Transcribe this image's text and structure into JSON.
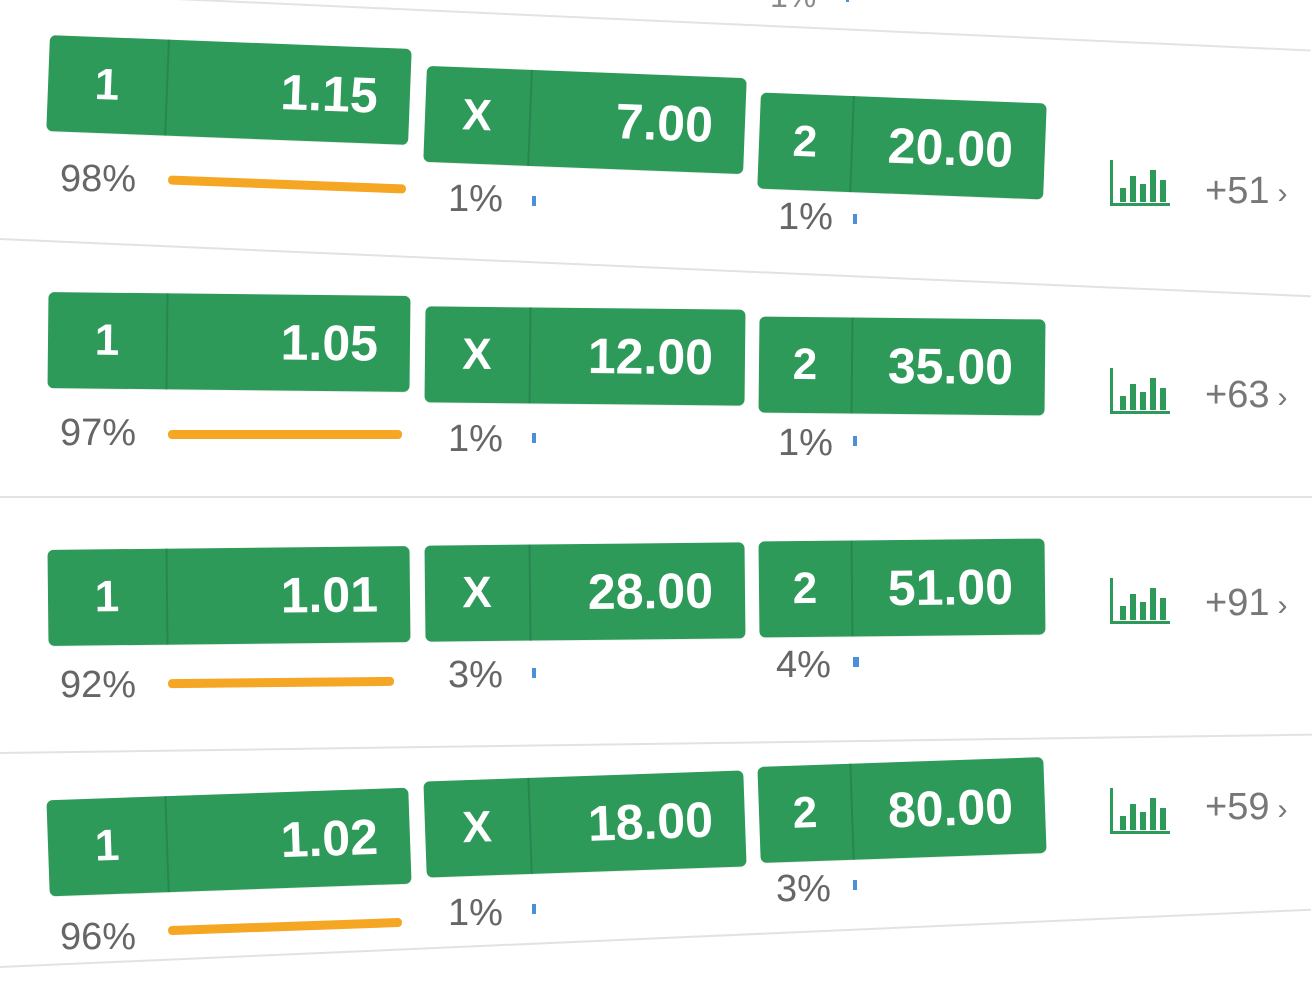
{
  "top_fragment": "1%",
  "matches": [
    {
      "outcomes": [
        {
          "label": "1",
          "odds": "1.15",
          "percent": "98%",
          "share": 98
        },
        {
          "label": "X",
          "odds": "7.00",
          "percent": "1%",
          "share": 1
        },
        {
          "label": "2",
          "odds": "20.00",
          "percent": "1%",
          "share": 1
        }
      ],
      "more_markets": "+51"
    },
    {
      "outcomes": [
        {
          "label": "1",
          "odds": "1.05",
          "percent": "97%",
          "share": 97
        },
        {
          "label": "X",
          "odds": "12.00",
          "percent": "1%",
          "share": 1
        },
        {
          "label": "2",
          "odds": "35.00",
          "percent": "1%",
          "share": 1
        }
      ],
      "more_markets": "+63"
    },
    {
      "outcomes": [
        {
          "label": "1",
          "odds": "1.01",
          "percent": "92%",
          "share": 92
        },
        {
          "label": "X",
          "odds": "28.00",
          "percent": "3%",
          "share": 3
        },
        {
          "label": "2",
          "odds": "51.00",
          "percent": "4%",
          "share": 4
        }
      ],
      "more_markets": "+91"
    },
    {
      "outcomes": [
        {
          "label": "1",
          "odds": "1.02",
          "percent": "96%",
          "share": 96
        },
        {
          "label": "X",
          "odds": "18.00",
          "percent": "1%",
          "share": 1
        },
        {
          "label": "2",
          "odds": "80.00",
          "percent": "3%",
          "share": 3
        }
      ],
      "more_markets": "+59"
    }
  ],
  "icons": {
    "stats": "bar-chart-icon",
    "more": "chevron-right-icon"
  },
  "colors": {
    "odds_button": "#2e9a5a",
    "home_bar": "#f5a623",
    "minor_bar": "#4a90d9",
    "text_muted": "#666666"
  }
}
